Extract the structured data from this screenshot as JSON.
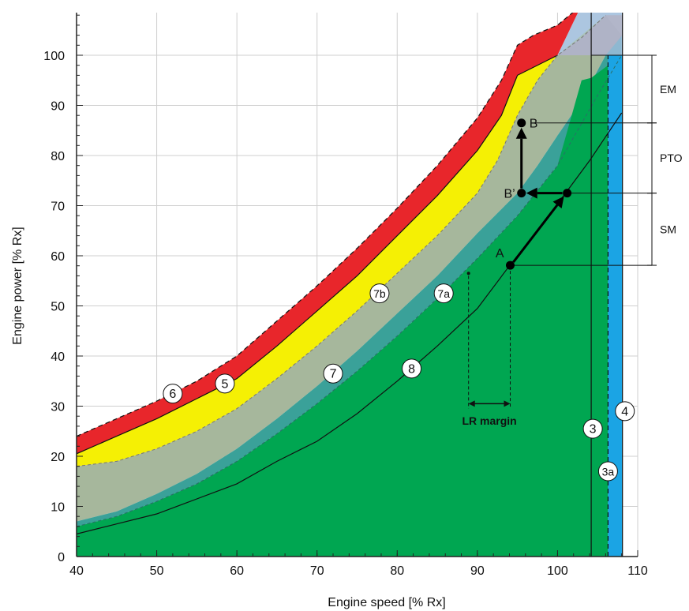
{
  "chart_data": {
    "type": "area",
    "xlabel": "Engine speed [% Rx]",
    "ylabel": "Engine power [% Rx]",
    "xlim": [
      40,
      110
    ],
    "ylim": [
      0,
      108
    ],
    "xticks": [
      40,
      50,
      60,
      70,
      80,
      90,
      100,
      110
    ],
    "yticks": [
      0,
      10,
      20,
      30,
      40,
      50,
      60,
      70,
      80,
      90,
      100
    ],
    "grid": true,
    "colors": {
      "red": "#e8262b",
      "yellow": "#f5f004",
      "gray_green": "#a6b79c",
      "teal": "#3aa199",
      "green": "#00a651",
      "blue": "#1ba4e4",
      "light_blue": "#9dbcda",
      "light_blue_overlap": "#b4b0c2",
      "grid": "#cfcfcf"
    },
    "areas": {
      "line6_upper": [
        [
          40,
          24
        ],
        [
          45,
          27.5
        ],
        [
          50,
          31
        ],
        [
          55,
          35
        ],
        [
          60,
          40
        ],
        [
          65,
          47
        ],
        [
          70,
          54
        ],
        [
          75,
          61.5
        ],
        [
          80,
          69.5
        ],
        [
          85,
          78
        ],
        [
          90,
          87.5
        ],
        [
          93,
          95
        ],
        [
          95,
          102
        ],
        [
          97,
          104
        ],
        [
          100,
          106
        ],
        [
          103,
          110
        ]
      ],
      "line5": [
        [
          40,
          20.5
        ],
        [
          45,
          24
        ],
        [
          50,
          27.5
        ],
        [
          55,
          31.5
        ],
        [
          60,
          35.5
        ],
        [
          65,
          42
        ],
        [
          70,
          49
        ],
        [
          75,
          56
        ],
        [
          80,
          64
        ],
        [
          85,
          72
        ],
        [
          90,
          81
        ],
        [
          93,
          88
        ],
        [
          95,
          96
        ],
        [
          100,
          100
        ]
      ],
      "line7b": [
        [
          40,
          18
        ],
        [
          45,
          19
        ],
        [
          50,
          21.5
        ],
        [
          55,
          25
        ],
        [
          60,
          29.5
        ],
        [
          65,
          35.5
        ],
        [
          70,
          42
        ],
        [
          75,
          49
        ],
        [
          80,
          56.5
        ],
        [
          85,
          64
        ],
        [
          90,
          72.5
        ],
        [
          92.5,
          79
        ],
        [
          95,
          88
        ],
        [
          97.5,
          95
        ],
        [
          100,
          100
        ],
        [
          103,
          103.5
        ],
        [
          106,
          108
        ]
      ],
      "line7": [
        [
          40,
          7
        ],
        [
          45,
          9
        ],
        [
          50,
          12.5
        ],
        [
          55,
          16.5
        ],
        [
          60,
          21.5
        ],
        [
          65,
          27.5
        ],
        [
          70,
          34
        ],
        [
          75,
          41
        ],
        [
          80,
          48.5
        ],
        [
          85,
          56
        ],
        [
          90,
          64.5
        ],
        [
          95,
          72.5
        ],
        [
          97.5,
          78
        ],
        [
          100,
          84
        ],
        [
          103,
          91
        ],
        [
          106,
          100
        ],
        [
          108,
          104
        ]
      ],
      "line7a": [
        [
          40,
          6
        ],
        [
          45,
          8
        ],
        [
          50,
          11
        ],
        [
          55,
          14.5
        ],
        [
          60,
          19
        ],
        [
          65,
          24.5
        ],
        [
          70,
          30.5
        ],
        [
          75,
          37
        ],
        [
          80,
          44
        ],
        [
          85,
          51.5
        ],
        [
          90,
          59.5
        ],
        [
          95,
          68
        ],
        [
          100,
          78
        ],
        [
          105,
          92
        ],
        [
          108,
          100
        ]
      ],
      "line8": [
        [
          40,
          4.5
        ],
        [
          45,
          6.5
        ],
        [
          50,
          8.5
        ],
        [
          55,
          11.5
        ],
        [
          60,
          14.5
        ],
        [
          65,
          19
        ],
        [
          70,
          23
        ],
        [
          75,
          28.5
        ],
        [
          80,
          35
        ],
        [
          85,
          42
        ],
        [
          90,
          49.5
        ],
        [
          94,
          58
        ],
        [
          97,
          64
        ],
        [
          101,
          72.5
        ],
        [
          104,
          79
        ],
        [
          108,
          88.5
        ]
      ]
    },
    "vertical_lines": {
      "line3": 104.2,
      "line3a": 106.3,
      "line4": 108.1,
      "eng_max_power": 100
    },
    "points": [
      {
        "label": "A",
        "x": 94.1,
        "y": 58.1
      },
      {
        "label": "B",
        "x": 95.5,
        "y": 86.5
      },
      {
        "label": "B’",
        "x": 95.5,
        "y": 72.5
      },
      {
        "label": "",
        "x": 101.2,
        "y": 72.5
      }
    ],
    "circle_labels": [
      "6",
      "5",
      "7",
      "8",
      "7b",
      "7a",
      "3",
      "3a",
      "4"
    ],
    "margins": [
      {
        "label": "EM",
        "from": 86.5,
        "to": 100
      },
      {
        "label": "PTO",
        "from": 72.5,
        "to": 86.5
      },
      {
        "label": "SM",
        "from": 58.1,
        "to": 72.5
      }
    ],
    "lr_margin": {
      "label": "LR margin",
      "from": 88.9,
      "to": 94.1
    }
  }
}
